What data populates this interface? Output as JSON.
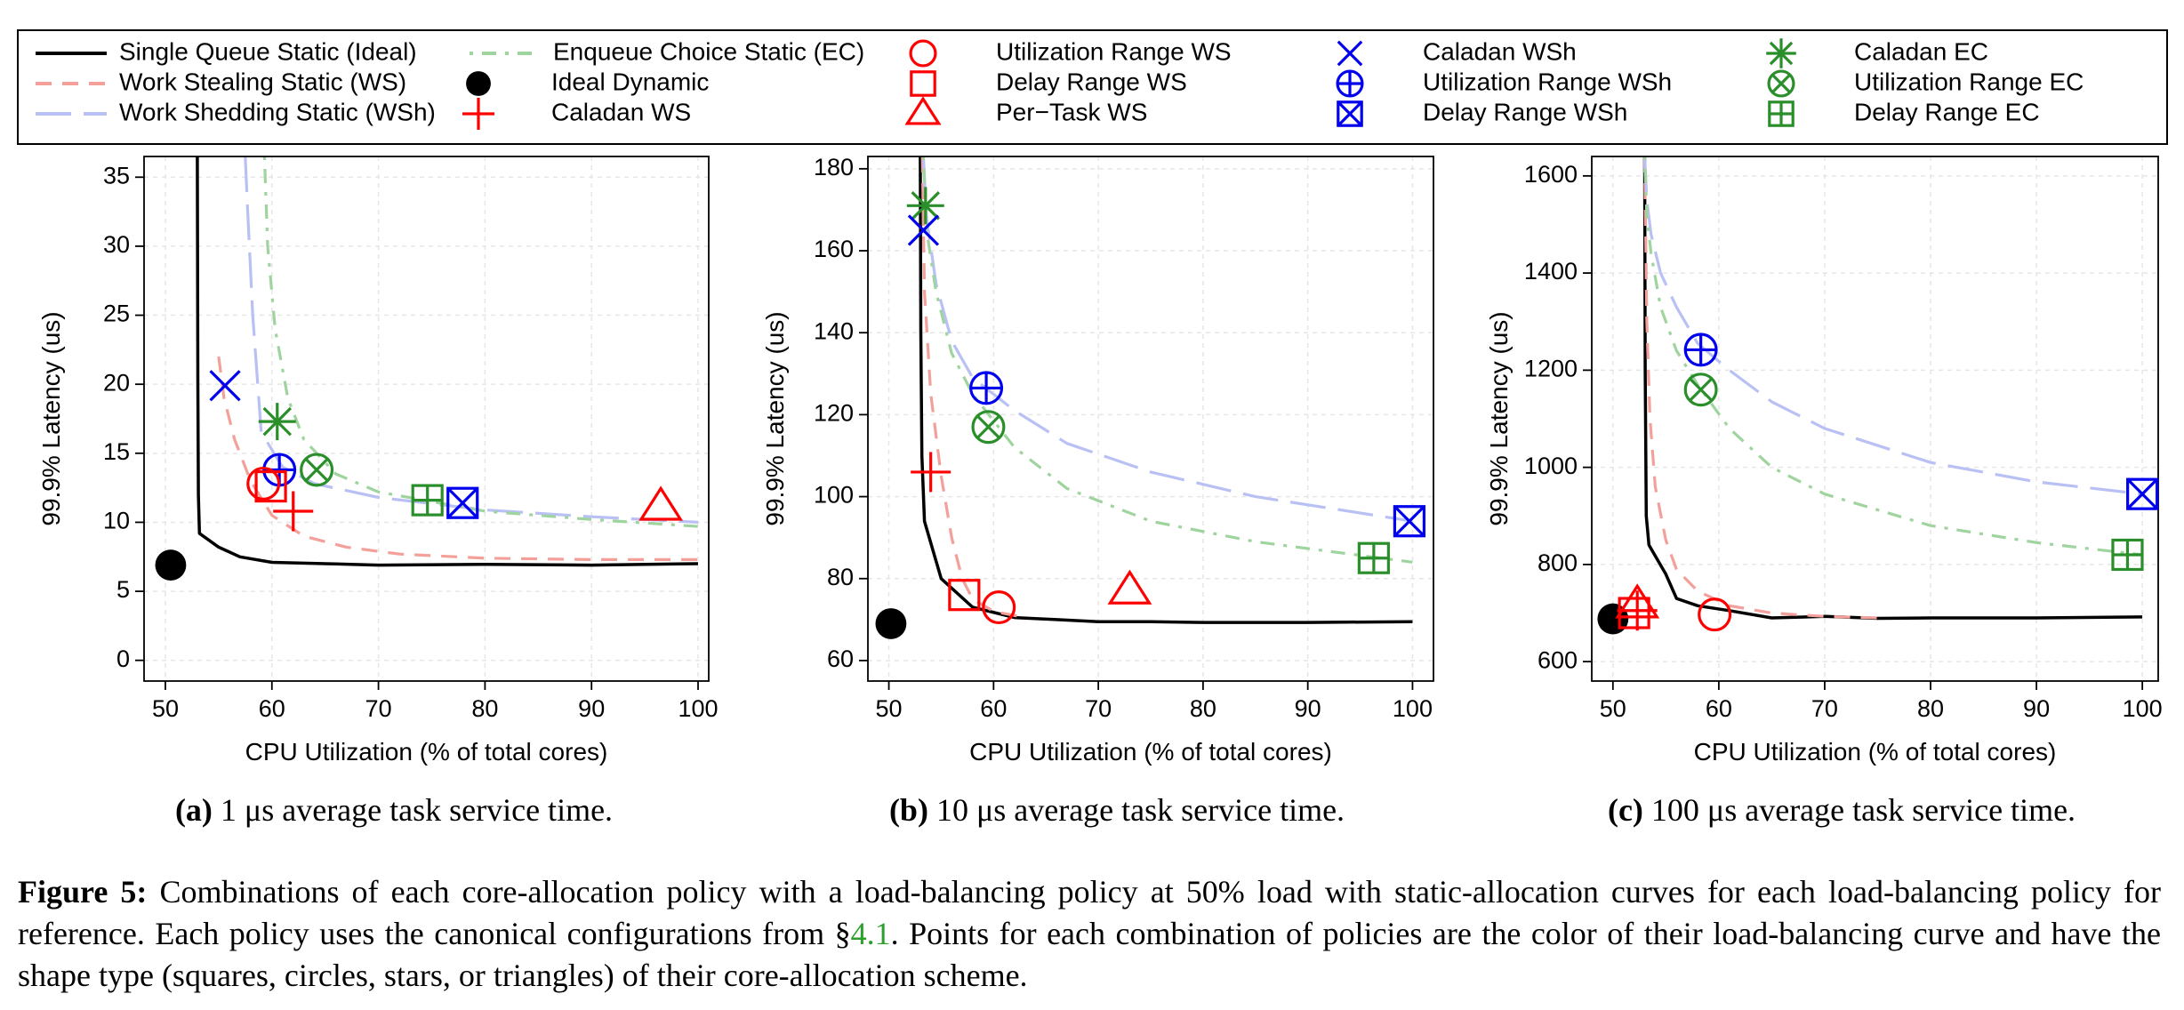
{
  "figure": {
    "label": "Figure 5:",
    "caption_before_ref": " Combinations of each core-allocation policy with a load-balancing policy at 50% load with static-allocation curves for each load-balancing policy for reference. Each policy uses the canonical configurations from §",
    "ref": "4.1",
    "caption_after_ref": ". Points for each combination of policies are the color of their load-balancing curve and have the shape type (squares, circles, stars, or triangles) of their core-allocation scheme."
  },
  "legend": [
    {
      "key": "sq",
      "label": "Single Queue Static (Ideal)",
      "kind": "line",
      "color": "#000000",
      "dash": "none"
    },
    {
      "key": "ws",
      "label": "Work Stealing Static (WS)",
      "kind": "line",
      "color": "#f4a09a",
      "dash": "18,12"
    },
    {
      "key": "wsh",
      "label": "Work Shedding Static (WSh)",
      "kind": "line",
      "color": "#b9c0f4",
      "dash": "40,14"
    },
    {
      "key": "ec",
      "label": "Enqueue Choice Static (EC)",
      "kind": "line",
      "color": "#9fd49f",
      "dash": "4,10,16,10"
    },
    {
      "key": "ideal_dyn",
      "label": "Ideal Dynamic",
      "kind": "marker",
      "marker": "dot",
      "color": "#000000"
    },
    {
      "key": "caladan_ws",
      "label": "Caladan WS",
      "kind": "marker",
      "marker": "plus",
      "color": "#ff0000"
    },
    {
      "key": "util_ws",
      "label": "Utilization Range WS",
      "kind": "marker",
      "marker": "circle",
      "color": "#ff0000"
    },
    {
      "key": "delay_ws",
      "label": "Delay Range WS",
      "kind": "marker",
      "marker": "square",
      "color": "#ff0000"
    },
    {
      "key": "pertask_ws",
      "label": "Per−Task WS",
      "kind": "marker",
      "marker": "triangle",
      "color": "#ff0000"
    },
    {
      "key": "caladan_wsh",
      "label": "Caladan WSh",
      "kind": "marker",
      "marker": "x",
      "color": "#0000ee"
    },
    {
      "key": "util_wsh",
      "label": "Utilization Range WSh",
      "kind": "marker",
      "marker": "circleplus",
      "color": "#0000ee"
    },
    {
      "key": "delay_wsh",
      "label": "Delay Range WSh",
      "kind": "marker",
      "marker": "squarex",
      "color": "#0000ee"
    },
    {
      "key": "caladan_ec",
      "label": "Caladan EC",
      "kind": "marker",
      "marker": "star",
      "color": "#2a8f2a"
    },
    {
      "key": "util_ec",
      "label": "Utilization Range EC",
      "kind": "marker",
      "marker": "circlex",
      "color": "#2a8f2a"
    },
    {
      "key": "delay_ec",
      "label": "Delay Range EC",
      "kind": "marker",
      "marker": "squareplus",
      "color": "#2a8f2a"
    }
  ],
  "chart_data": [
    {
      "type": "line",
      "caption_label": "(a)",
      "caption_text": " 1 μs average task service time.",
      "xlabel": "CPU Utilization (% of total cores)",
      "ylabel": "99.9% Latency (us)",
      "xlim": [
        48,
        101
      ],
      "ylim": [
        -1.5,
        36.5
      ],
      "xticks": [
        50,
        60,
        70,
        80,
        90,
        100
      ],
      "yticks": [
        0,
        5,
        10,
        15,
        20,
        25,
        30,
        35
      ],
      "series": [
        {
          "key": "sq",
          "x": [
            53.0,
            53.05,
            53.1,
            53.2,
            55,
            57,
            60,
            65,
            70,
            80,
            90,
            100
          ],
          "y": [
            36.5,
            20,
            12,
            9.2,
            8.2,
            7.5,
            7.1,
            7.0,
            6.9,
            6.95,
            6.9,
            7.0
          ]
        },
        {
          "key": "ws",
          "x": [
            55,
            55.5,
            56.5,
            58,
            60,
            63,
            67,
            72,
            80,
            90,
            100
          ],
          "y": [
            22,
            19,
            16,
            13,
            10.5,
            9,
            8.2,
            7.7,
            7.4,
            7.3,
            7.3
          ]
        },
        {
          "key": "wsh",
          "x": [
            57.5,
            57.7,
            58.2,
            59,
            61,
            64,
            70,
            80,
            90,
            100
          ],
          "y": [
            36.5,
            33,
            25,
            16.5,
            14,
            12.8,
            11.8,
            10.9,
            10.4,
            10.0
          ]
        },
        {
          "key": "ec",
          "x": [
            59.3,
            59.6,
            60.3,
            61.5,
            63,
            66,
            70,
            80,
            90,
            100
          ],
          "y": [
            36.5,
            30,
            24,
            19,
            16,
            13.5,
            12.2,
            10.8,
            10.2,
            9.7
          ]
        }
      ],
      "points": [
        {
          "key": "ideal_dyn",
          "x": 50.5,
          "y": 6.9
        },
        {
          "key": "caladan_wsh",
          "x": 55.6,
          "y": 19.9
        },
        {
          "key": "caladan_ec",
          "x": 60.5,
          "y": 17.3
        },
        {
          "key": "util_wsh",
          "x": 60.7,
          "y": 13.8
        },
        {
          "key": "util_ec",
          "x": 64.2,
          "y": 13.8
        },
        {
          "key": "util_ws",
          "x": 59.2,
          "y": 12.8
        },
        {
          "key": "delay_ws",
          "x": 59.9,
          "y": 12.6
        },
        {
          "key": "caladan_ws",
          "x": 62.0,
          "y": 10.8
        },
        {
          "key": "delay_ec",
          "x": 74.6,
          "y": 11.6
        },
        {
          "key": "delay_wsh",
          "x": 77.9,
          "y": 11.4
        },
        {
          "key": "pertask_ws",
          "x": 96.5,
          "y": 11.1
        }
      ]
    },
    {
      "type": "line",
      "caption_label": "(b)",
      "caption_text": " 10 μs average task service time.",
      "xlabel": "CPU Utilization (% of total cores)",
      "ylabel": "99.9% Latency (us)",
      "xlim": [
        48,
        102
      ],
      "ylim": [
        55,
        183
      ],
      "xticks": [
        50,
        60,
        70,
        80,
        90,
        100
      ],
      "yticks": [
        60,
        80,
        100,
        120,
        140,
        160,
        180
      ],
      "series": [
        {
          "key": "sq",
          "x": [
            53.0,
            53.05,
            53.15,
            53.4,
            55,
            58,
            62,
            66,
            70,
            75,
            80,
            90,
            100
          ],
          "y": [
            183,
            140,
            110,
            94,
            80,
            73,
            70.5,
            70,
            69.5,
            69.5,
            69.3,
            69.3,
            69.5
          ]
        },
        {
          "key": "ws",
          "x": [
            53.2,
            53.4,
            54,
            55,
            56,
            57,
            58,
            60,
            63
          ],
          "y": [
            183,
            150,
            125,
            105,
            90,
            80,
            75,
            72,
            70.5
          ]
        },
        {
          "key": "wsh",
          "x": [
            53.3,
            53.6,
            54.5,
            56,
            58,
            62,
            67,
            75,
            85,
            100
          ],
          "y": [
            183,
            168,
            152,
            138,
            129,
            121,
            113,
            106,
            100,
            94
          ]
        },
        {
          "key": "ec",
          "x": [
            53.3,
            53.6,
            54.5,
            56,
            58,
            62,
            67,
            75,
            85,
            100
          ],
          "y": [
            183,
            165,
            150,
            135,
            125,
            112,
            102,
            94,
            89,
            84
          ]
        }
      ],
      "points": [
        {
          "key": "ideal_dyn",
          "x": 50.2,
          "y": 69
        },
        {
          "key": "caladan_ec",
          "x": 53.5,
          "y": 171
        },
        {
          "key": "caladan_wsh",
          "x": 53.3,
          "y": 165
        },
        {
          "key": "util_wsh",
          "x": 59.3,
          "y": 126.5
        },
        {
          "key": "util_ec",
          "x": 59.5,
          "y": 117
        },
        {
          "key": "caladan_ws",
          "x": 54.0,
          "y": 106
        },
        {
          "key": "delay_ws",
          "x": 57.2,
          "y": 76
        },
        {
          "key": "util_ws",
          "x": 60.5,
          "y": 73
        },
        {
          "key": "pertask_ws",
          "x": 73.0,
          "y": 77
        },
        {
          "key": "delay_ec",
          "x": 96.3,
          "y": 85
        },
        {
          "key": "delay_wsh",
          "x": 99.7,
          "y": 94
        }
      ]
    },
    {
      "type": "line",
      "caption_label": "(c)",
      "caption_text": " 100 μs average task service time.",
      "xlabel": "CPU Utilization (% of total cores)",
      "ylabel": "99.9% Latency (us)",
      "xlim": [
        48,
        101.5
      ],
      "ylim": [
        560,
        1640
      ],
      "xticks": [
        50,
        60,
        70,
        80,
        90,
        100
      ],
      "yticks": [
        600,
        800,
        1000,
        1200,
        1400,
        1600
      ],
      "series": [
        {
          "key": "sq",
          "x": [
            53.0,
            53.05,
            53.15,
            53.4,
            55,
            56,
            58,
            61,
            65,
            70,
            75,
            80,
            90,
            100
          ],
          "y": [
            1640,
            1200,
            900,
            840,
            780,
            730,
            715,
            705,
            690,
            693,
            689,
            690,
            690,
            692
          ]
        },
        {
          "key": "ws",
          "x": [
            53.0,
            53.2,
            53.5,
            54,
            55,
            56,
            58,
            61,
            65,
            70,
            75
          ],
          "y": [
            1640,
            1300,
            1100,
            960,
            850,
            790,
            745,
            715,
            700,
            693,
            690
          ]
        },
        {
          "key": "wsh",
          "x": [
            53.0,
            53.2,
            53.6,
            54.5,
            56,
            58,
            61,
            65,
            70,
            80,
            90,
            100
          ],
          "y": [
            1640,
            1550,
            1480,
            1400,
            1330,
            1255,
            1200,
            1135,
            1080,
            1010,
            970,
            945
          ]
        },
        {
          "key": "ec",
          "x": [
            53.0,
            53.2,
            53.6,
            54.5,
            56,
            58,
            61,
            65,
            70,
            80,
            90,
            100
          ],
          "y": [
            1640,
            1520,
            1440,
            1330,
            1240,
            1170,
            1080,
            1000,
            945,
            880,
            845,
            820
          ]
        }
      ],
      "points": [
        {
          "key": "ideal_dyn",
          "x": 50.0,
          "y": 688
        },
        {
          "key": "delay_ws",
          "x": 52.0,
          "y": 700
        },
        {
          "key": "pertask_ws",
          "x": 52.3,
          "y": 717
        },
        {
          "key": "caladan_ws",
          "x": 52.3,
          "y": 705
        },
        {
          "key": "util_ws",
          "x": 59.6,
          "y": 697
        },
        {
          "key": "util_wsh",
          "x": 58.3,
          "y": 1242
        },
        {
          "key": "util_ec",
          "x": 58.3,
          "y": 1160
        },
        {
          "key": "delay_wsh",
          "x": 100.0,
          "y": 945
        },
        {
          "key": "delay_ec",
          "x": 98.6,
          "y": 820
        }
      ]
    }
  ]
}
